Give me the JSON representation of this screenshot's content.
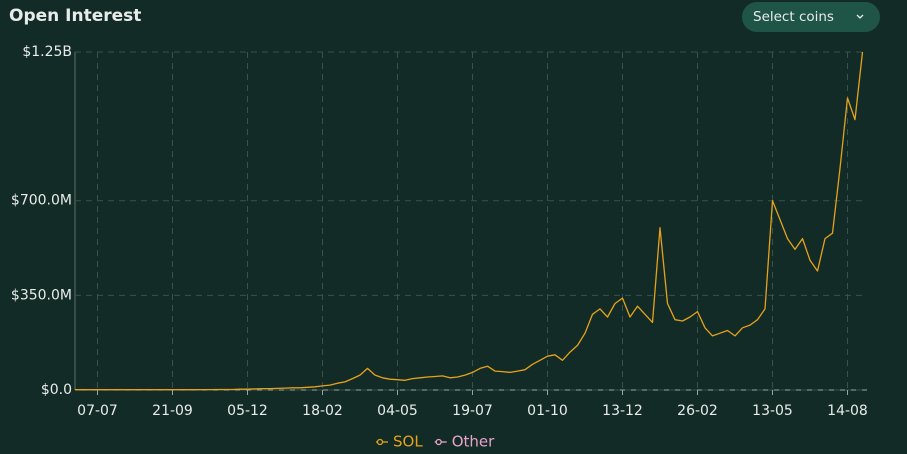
{
  "ui": {
    "button": "Select coins"
  },
  "chart_data": {
    "type": "line",
    "title": "Open Interest",
    "categories": [
      null,
      null,
      null,
      "07-07",
      null,
      null,
      null,
      null,
      null,
      null,
      null,
      null,
      null,
      "21-09",
      null,
      null,
      null,
      null,
      null,
      null,
      null,
      null,
      null,
      "05-12",
      null,
      null,
      null,
      null,
      null,
      null,
      null,
      null,
      null,
      "18-02",
      null,
      null,
      null,
      null,
      null,
      null,
      null,
      null,
      null,
      "04-05",
      null,
      null,
      null,
      null,
      null,
      null,
      null,
      null,
      null,
      "19-07",
      null,
      null,
      null,
      null,
      null,
      null,
      null,
      null,
      null,
      "01-10",
      null,
      null,
      null,
      null,
      null,
      null,
      null,
      null,
      null,
      "13-12",
      null,
      null,
      null,
      null,
      null,
      null,
      null,
      null,
      null,
      "26-02",
      null,
      null,
      null,
      null,
      null,
      null,
      null,
      null,
      null,
      "13-05",
      null,
      null,
      null,
      null,
      null,
      null,
      null,
      null,
      null,
      "14-08",
      null,
      null
    ],
    "series": [
      {
        "name": "SOL",
        "color": "#e5a21c",
        "values": [
          1,
          1,
          1,
          1,
          1,
          1,
          1,
          1,
          1,
          1,
          1,
          1,
          1,
          1,
          1,
          1,
          1,
          1.5,
          1.5,
          2,
          2,
          2,
          3,
          3,
          4,
          5,
          5,
          6,
          7,
          8,
          8,
          10,
          12,
          15,
          18,
          25,
          30,
          42,
          55,
          80,
          55,
          45,
          40,
          38,
          36,
          42,
          45,
          48,
          50,
          52,
          45,
          48,
          55,
          65,
          80,
          88,
          70,
          68,
          65,
          70,
          75,
          95,
          110,
          125,
          130,
          110,
          140,
          165,
          210,
          280,
          300,
          270,
          320,
          340,
          270,
          310,
          280,
          250,
          600,
          320,
          260,
          255,
          270,
          290,
          230,
          200,
          210,
          220,
          200,
          230,
          240,
          260,
          300,
          700,
          630,
          560,
          520,
          560,
          480,
          440,
          560,
          580,
          820,
          1080,
          1000,
          1250
        ]
      },
      {
        "name": "Other",
        "color": "#e8a4c8",
        "values": [
          null,
          null,
          null,
          null,
          null,
          null,
          null,
          null,
          null,
          null,
          null,
          null,
          null,
          null,
          null,
          null,
          null,
          null,
          null,
          null,
          null,
          null,
          null,
          null,
          null,
          null,
          null,
          null,
          null,
          null,
          null,
          null,
          null,
          null,
          null,
          null,
          null,
          null,
          null,
          null,
          null,
          null,
          null,
          null,
          null,
          null,
          null,
          null,
          null,
          null,
          null,
          null,
          null,
          null,
          null,
          null,
          null,
          null,
          null,
          null,
          null,
          null,
          null,
          null,
          null,
          null,
          null,
          null,
          null,
          null,
          null,
          null,
          null,
          null,
          null,
          null,
          null,
          null,
          null,
          null,
          null,
          null,
          null,
          null,
          null,
          null,
          null,
          null,
          null,
          null,
          null,
          null,
          null,
          null,
          null,
          null,
          null,
          null,
          null,
          null,
          null,
          null,
          null,
          null,
          null,
          null
        ]
      }
    ],
    "ylim": [
      0,
      1250
    ],
    "yticks": [
      {
        "value": 0,
        "label": "$0.0"
      },
      {
        "value": 350,
        "label": "$350.0M"
      },
      {
        "value": 700,
        "label": "$700.0M"
      },
      {
        "value": 1250,
        "label": "$1.25B"
      }
    ],
    "grid": true
  }
}
